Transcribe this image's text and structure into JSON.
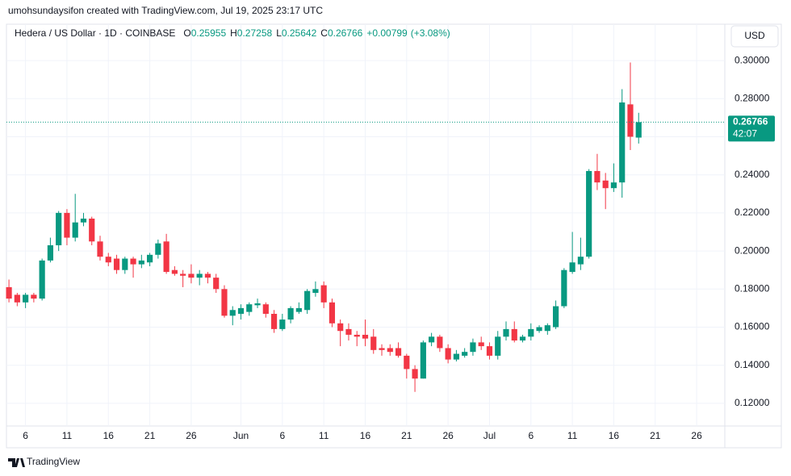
{
  "header": {
    "credit": "umohsundaysifon created with TradingView.com, Jul 19, 2025 23:17 UTC"
  },
  "currency_button": "USD",
  "watermark": "TradingView",
  "chart_data": {
    "type": "candlestick",
    "title": "Hedera / US Dollar · 1D · COINBASE",
    "ohlc_legend": [
      {
        "label": "O",
        "value": 0.25955
      },
      {
        "label": "H",
        "value": 0.27258
      },
      {
        "label": "L",
        "value": 0.25642
      },
      {
        "label": "C",
        "value": 0.26766
      }
    ],
    "change": {
      "value": 0.00799,
      "label": "+0.00799"
    },
    "change_percent": {
      "value": 3.08,
      "label": "(+3.08%)"
    },
    "last_price": 0.26766,
    "countdown": "42:07",
    "up_color": "#089981",
    "down_color": "#f23645",
    "grid": true,
    "xlim": [
      -0.3,
      86.4
    ],
    "xticks": [
      {
        "value": 2,
        "label": "6"
      },
      {
        "value": 7,
        "label": "11"
      },
      {
        "value": 12,
        "label": "16"
      },
      {
        "value": 17,
        "label": "21"
      },
      {
        "value": 22,
        "label": "26"
      },
      {
        "value": 28,
        "label": "Jun"
      },
      {
        "value": 33,
        "label": "6"
      },
      {
        "value": 38,
        "label": "11"
      },
      {
        "value": 43,
        "label": "16"
      },
      {
        "value": 48,
        "label": "21"
      },
      {
        "value": 53,
        "label": "26"
      },
      {
        "value": 58,
        "label": "Jul"
      },
      {
        "value": 63,
        "label": "6"
      },
      {
        "value": 68,
        "label": "11"
      },
      {
        "value": 73,
        "label": "16"
      },
      {
        "value": 78,
        "label": "21"
      },
      {
        "value": 83,
        "label": "26"
      }
    ],
    "ylim": [
      0.1081,
      0.3191
    ],
    "yticks": [
      {
        "value": 0.12,
        "label": "0.12000"
      },
      {
        "value": 0.14,
        "label": "0.14000"
      },
      {
        "value": 0.16,
        "label": "0.16000"
      },
      {
        "value": 0.18,
        "label": "0.18000"
      },
      {
        "value": 0.2,
        "label": "0.20000"
      },
      {
        "value": 0.22,
        "label": "0.22000"
      },
      {
        "value": 0.24,
        "label": "0.24000"
      },
      {
        "value": 0.26,
        "label": "0.26000"
      },
      {
        "value": 0.28,
        "label": "0.28000"
      },
      {
        "value": 0.3,
        "label": "0.30000"
      }
    ],
    "open": [
      0.181,
      0.177,
      0.173,
      0.177,
      0.175,
      0.195,
      0.203,
      0.22,
      0.207,
      0.215,
      0.217,
      0.205,
      0.197,
      0.196,
      0.19,
      0.196,
      0.193,
      0.194,
      0.198,
      0.205,
      0.19,
      0.188,
      0.188,
      0.186,
      0.188,
      0.186,
      0.18,
      0.166,
      0.167,
      0.168,
      0.1715,
      0.172,
      0.167,
      0.159,
      0.164,
      0.168,
      0.169,
      0.178,
      0.182,
      0.173,
      0.162,
      0.159,
      0.156,
      0.156,
      0.155,
      0.149,
      0.149,
      0.149,
      0.145,
      0.138,
      0.133,
      0.152,
      0.155,
      0.149,
      0.143,
      0.145,
      0.147,
      0.152,
      0.15,
      0.145,
      0.155,
      0.159,
      0.153,
      0.155,
      0.158,
      0.158,
      0.16,
      0.171,
      0.189,
      0.193,
      0.197,
      0.242,
      0.237,
      0.233,
      0.236,
      0.277,
      0.25955
    ],
    "high": [
      0.185,
      0.178,
      0.178,
      0.178,
      0.196,
      0.207,
      0.221,
      0.222,
      0.23,
      0.22,
      0.218,
      0.208,
      0.199,
      0.198,
      0.197,
      0.197,
      0.198,
      0.199,
      0.206,
      0.209,
      0.192,
      0.19,
      0.193,
      0.19,
      0.189,
      0.188,
      0.182,
      0.171,
      0.172,
      0.173,
      0.175,
      0.173,
      0.169,
      0.167,
      0.171,
      0.173,
      0.18,
      0.184,
      0.184,
      0.175,
      0.164,
      0.162,
      0.158,
      0.164,
      0.159,
      0.151,
      0.151,
      0.152,
      0.146,
      0.14,
      0.153,
      0.157,
      0.156,
      0.151,
      0.148,
      0.149,
      0.154,
      0.155,
      0.152,
      0.158,
      0.163,
      0.163,
      0.156,
      0.162,
      0.161,
      0.162,
      0.174,
      0.191,
      0.21,
      0.207,
      0.243,
      0.251,
      0.241,
      0.246,
      0.285,
      0.299,
      0.27258
    ],
    "low": [
      0.173,
      0.171,
      0.17,
      0.173,
      0.174,
      0.194,
      0.2,
      0.203,
      0.205,
      0.213,
      0.203,
      0.195,
      0.192,
      0.188,
      0.188,
      0.186,
      0.191,
      0.192,
      0.196,
      0.188,
      0.187,
      0.181,
      0.183,
      0.182,
      0.183,
      0.178,
      0.165,
      0.161,
      0.164,
      0.166,
      0.17,
      0.165,
      0.157,
      0.158,
      0.162,
      0.167,
      0.167,
      0.176,
      0.17,
      0.16,
      0.15,
      0.153,
      0.15,
      0.15,
      0.146,
      0.145,
      0.145,
      0.144,
      0.133,
      0.126,
      0.133,
      0.15,
      0.147,
      0.141,
      0.142,
      0.144,
      0.145,
      0.148,
      0.143,
      0.143,
      0.153,
      0.152,
      0.152,
      0.153,
      0.157,
      0.156,
      0.159,
      0.17,
      0.188,
      0.19,
      0.196,
      0.232,
      0.222,
      0.231,
      0.228,
      0.253,
      0.25642
    ],
    "close": [
      0.175,
      0.173,
      0.177,
      0.175,
      0.195,
      0.203,
      0.22,
      0.207,
      0.215,
      0.217,
      0.205,
      0.197,
      0.194,
      0.19,
      0.196,
      0.193,
      0.195,
      0.198,
      0.204,
      0.189,
      0.188,
      0.187,
      0.186,
      0.188,
      0.186,
      0.18,
      0.166,
      0.169,
      0.17,
      0.172,
      0.1725,
      0.167,
      0.159,
      0.164,
      0.17,
      0.17,
      0.179,
      0.18,
      0.173,
      0.162,
      0.158,
      0.156,
      0.155,
      0.154,
      0.148,
      0.148,
      0.147,
      0.145,
      0.138,
      0.133,
      0.152,
      0.155,
      0.149,
      0.143,
      0.146,
      0.147,
      0.152,
      0.15,
      0.145,
      0.155,
      0.159,
      0.153,
      0.155,
      0.159,
      0.16,
      0.161,
      0.171,
      0.19,
      0.194,
      0.197,
      0.242,
      0.236,
      0.233,
      0.236,
      0.278,
      0.26,
      0.26766
    ]
  }
}
